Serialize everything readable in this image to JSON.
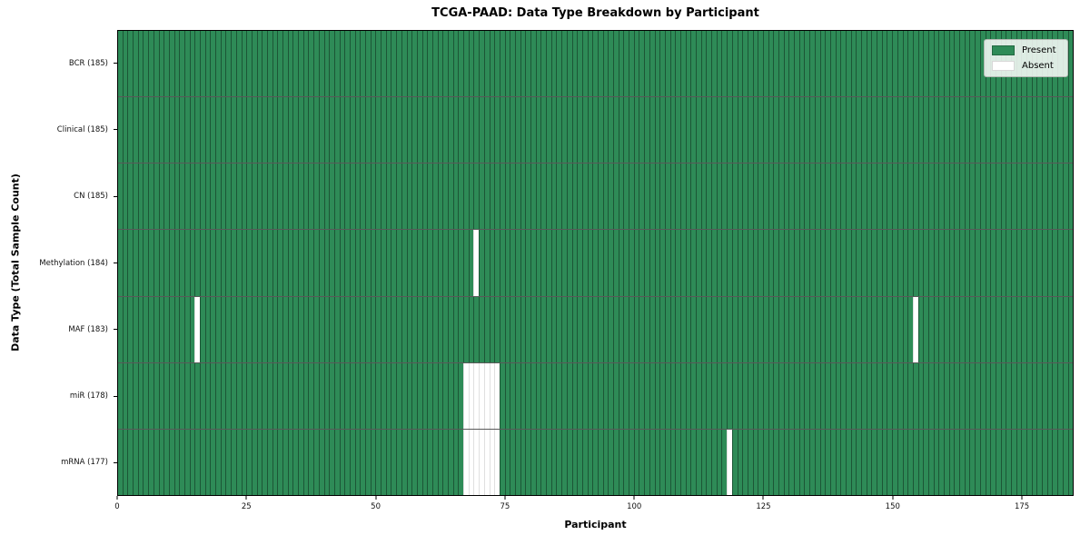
{
  "figure": {
    "title": "TCGA-PAAD: Data Type Breakdown by Participant",
    "xlabel": "Participant",
    "ylabel": "Data Type (Total Sample Count)"
  },
  "colors": {
    "present": "#2e8b57",
    "absent": "#ffffff",
    "bar_edge": "rgba(0,0,0,0.38)",
    "row_separator": "rgba(0,0,0,0.65)",
    "plot_border": "#000000"
  },
  "chart_data": {
    "type": "heatmap",
    "title": "TCGA-PAAD: Data Type Breakdown by Participant",
    "xlabel": "Participant",
    "ylabel": "Data Type (Total Sample Count)",
    "n_participants": 185,
    "xlim": [
      0,
      185
    ],
    "x_ticks": [
      0,
      25,
      50,
      75,
      100,
      125,
      150,
      175
    ],
    "grid": false,
    "legend_position": "upper right",
    "legend": [
      {
        "label": "Present",
        "color": "#2e8b57"
      },
      {
        "label": "Absent",
        "color": "#ffffff"
      }
    ],
    "rows": [
      {
        "data_type": "BCR",
        "label": "BCR (185)",
        "total": 185,
        "absent_participants": []
      },
      {
        "data_type": "Clinical",
        "label": "Clinical (185)",
        "total": 185,
        "absent_participants": []
      },
      {
        "data_type": "CN",
        "label": "CN (185)",
        "total": 185,
        "absent_participants": []
      },
      {
        "data_type": "Methylation",
        "label": "Methylation (184)",
        "total": 184,
        "absent_participants": [
          69
        ]
      },
      {
        "data_type": "MAF",
        "label": "MAF (183)",
        "total": 183,
        "absent_participants": [
          15,
          154
        ]
      },
      {
        "data_type": "miR",
        "label": "miR (178)",
        "total": 178,
        "absent_participants": [
          67,
          68,
          69,
          70,
          71,
          72,
          73
        ]
      },
      {
        "data_type": "mRNA",
        "label": "mRNA (177)",
        "total": 177,
        "absent_participants": [
          67,
          68,
          69,
          70,
          71,
          72,
          73,
          118
        ]
      }
    ]
  }
}
